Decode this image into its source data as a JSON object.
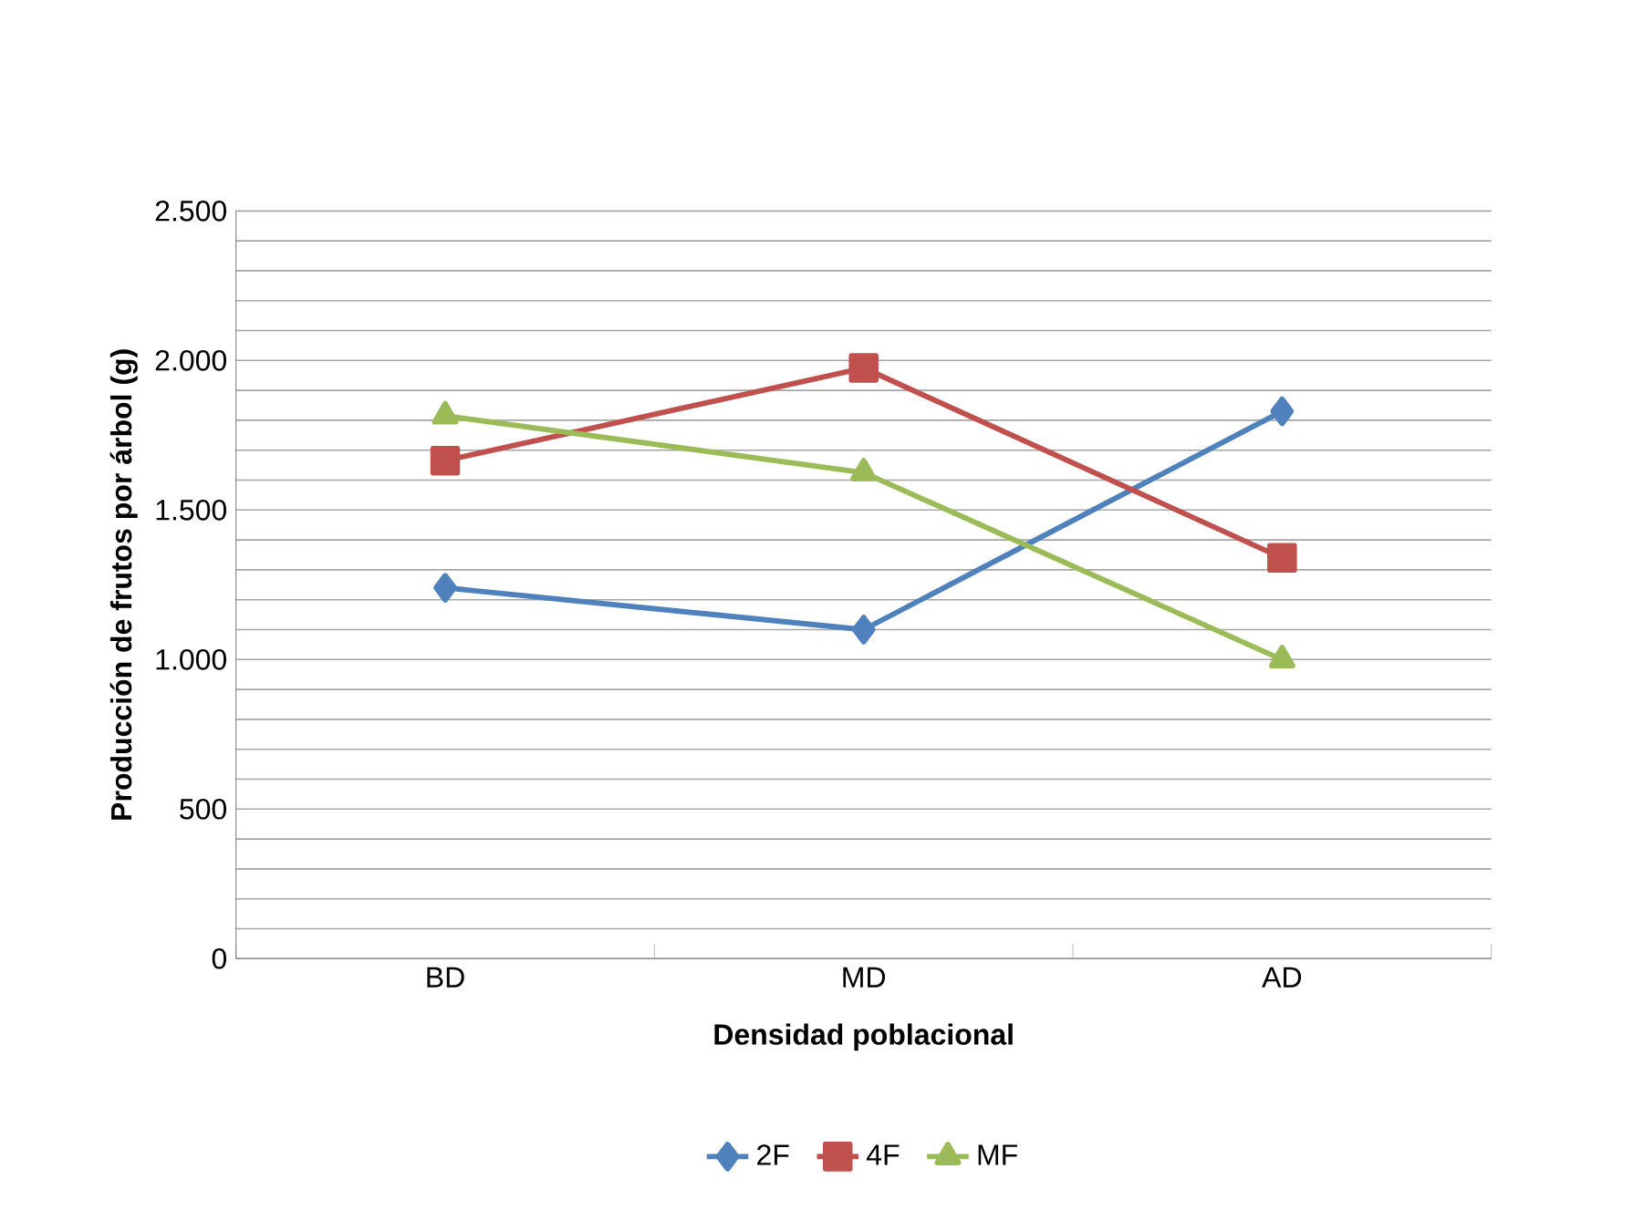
{
  "chart_data": {
    "type": "line",
    "xlabel": "Densidad poblacional",
    "ylabel": "Producción de frutos por árbol (g)",
    "categories": [
      "BD",
      "MD",
      "AD"
    ],
    "series": [
      {
        "name": "2F",
        "color": "#4f81bd",
        "marker": "diamond",
        "values": [
          1240,
          1100,
          1830
        ]
      },
      {
        "name": "4F",
        "color": "#c0504d",
        "marker": "square",
        "values": [
          1665,
          1975,
          1340
        ]
      },
      {
        "name": "MF",
        "color": "#9bbb59",
        "marker": "triangle",
        "values": [
          1815,
          1625,
          1000
        ]
      }
    ],
    "ylim": [
      0,
      2500
    ],
    "yticks": [
      {
        "value": 0,
        "label": "0"
      },
      {
        "value": 100,
        "label": null
      },
      {
        "value": 200,
        "label": null
      },
      {
        "value": 300,
        "label": null
      },
      {
        "value": 400,
        "label": null
      },
      {
        "value": 500,
        "label": "500"
      },
      {
        "value": 600,
        "label": null
      },
      {
        "value": 700,
        "label": null
      },
      {
        "value": 800,
        "label": null
      },
      {
        "value": 900,
        "label": null
      },
      {
        "value": 1000,
        "label": "1.000"
      },
      {
        "value": 1100,
        "label": null
      },
      {
        "value": 1200,
        "label": null
      },
      {
        "value": 1300,
        "label": null
      },
      {
        "value": 1400,
        "label": null
      },
      {
        "value": 1500,
        "label": "1.500"
      },
      {
        "value": 1600,
        "label": null
      },
      {
        "value": 1700,
        "label": null
      },
      {
        "value": 1800,
        "label": null
      },
      {
        "value": 1900,
        "label": null
      },
      {
        "value": 2000,
        "label": "2.000"
      },
      {
        "value": 2100,
        "label": null
      },
      {
        "value": 2200,
        "label": null
      },
      {
        "value": 2300,
        "label": null
      },
      {
        "value": 2400,
        "label": null
      },
      {
        "value": 2500,
        "label": "2.500"
      }
    ],
    "grid": "y",
    "legend": "bottom"
  }
}
